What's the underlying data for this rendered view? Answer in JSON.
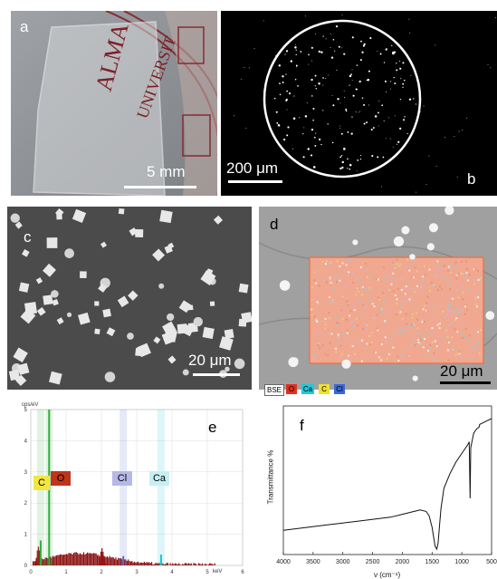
{
  "panels": {
    "a": {
      "label": "a",
      "scale": "5 mm"
    },
    "b": {
      "label": "b",
      "scale": "200 μm"
    },
    "c": {
      "label": "c",
      "scale": "20 μm"
    },
    "d": {
      "label": "d",
      "scale": "20 μm",
      "legend": [
        "BSE",
        "O",
        "Ca",
        "C",
        "Cl"
      ],
      "legend_colors": [
        "#ffffff",
        "#e0301e",
        "#22c7d8",
        "#f0e030",
        "#3a68d8"
      ]
    },
    "e": {
      "label": "e",
      "yunit": "cps/eV",
      "xunit": "keV",
      "tags": [
        "C",
        "O",
        "Cl",
        "Ca"
      ]
    },
    "f": {
      "label": "f",
      "ylabel": "Transmittance %",
      "xlabel": "ν (cm⁻¹)"
    }
  },
  "photo_text": "ALMA UNIVERSIT",
  "chart_data": [
    {
      "type": "bar",
      "title": "",
      "xlabel": "keV",
      "ylabel": "cps/eV",
      "xlim": [
        0,
        6
      ],
      "ylim": [
        0,
        5
      ],
      "x_ticks": [
        0,
        1,
        2,
        3,
        4,
        5,
        6
      ],
      "y_ticks": [
        0,
        1,
        2,
        3,
        4,
        5
      ],
      "peaks": [
        {
          "element": "C",
          "energy": 0.28,
          "value": 0.8,
          "color": "#2fae3c"
        },
        {
          "element": "O",
          "energy": 0.52,
          "value": 5.2,
          "color": "#2fae3c"
        },
        {
          "element": "Cl",
          "energy": 2.62,
          "value": 0.3,
          "color": "#5a6ad0"
        },
        {
          "element": "Ca",
          "energy": 3.69,
          "value": 0.35,
          "color": "#20c4d4"
        }
      ],
      "annotations": [
        "C",
        "O",
        "Cl",
        "Ca"
      ]
    },
    {
      "type": "line",
      "title": "",
      "xlabel": "ν (cm⁻¹)",
      "ylabel": "Transmittance %",
      "xlim": [
        4000,
        500
      ],
      "x_ticks": [
        4000,
        3500,
        3000,
        2500,
        2000,
        1500,
        1000,
        500
      ],
      "series": [
        {
          "x": [
            4000,
            3800,
            3600,
            3400,
            3200,
            3000,
            2800,
            2600,
            2400,
            2200,
            2000,
            1900,
            1800,
            1700,
            1600,
            1550,
            1500,
            1450,
            1420,
            1400,
            1350,
            1300,
            1200,
            1100,
            1000,
            950,
            900,
            876,
            860,
            850,
            800,
            750,
            712,
            700,
            650,
            600,
            550,
            500
          ],
          "y": [
            23,
            24,
            25,
            26,
            27,
            28,
            29,
            30,
            31,
            32,
            34,
            35,
            36,
            37,
            36,
            33,
            25,
            12,
            10,
            14,
            38,
            52,
            62,
            70,
            76,
            79,
            82,
            84,
            45,
            80,
            90,
            93,
            94,
            96,
            97,
            98,
            99,
            100
          ]
        }
      ]
    }
  ]
}
